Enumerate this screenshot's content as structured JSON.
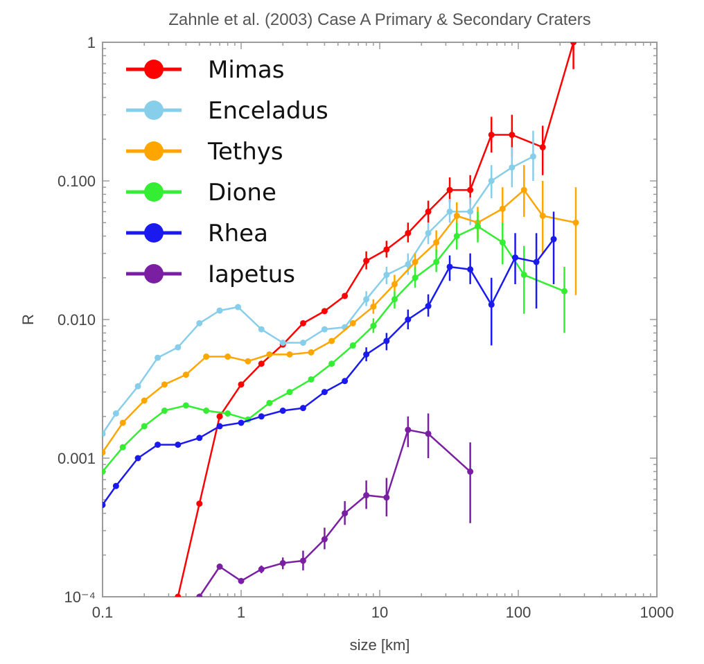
{
  "chart_data": {
    "type": "line",
    "title": "Zahnle et al. (2003) Case A Primary & Secondary Craters",
    "xlabel": "size [km]",
    "ylabel": "R",
    "xscale": "log",
    "yscale": "log",
    "xlim": [
      0.1,
      1000
    ],
    "ylim": [
      0.0001,
      1
    ],
    "x_ticks": [
      {
        "value": 0.1,
        "label": "0.1"
      },
      {
        "value": 1,
        "label": "1"
      },
      {
        "value": 10,
        "label": "10"
      },
      {
        "value": 100,
        "label": "100"
      },
      {
        "value": 1000,
        "label": "1000"
      }
    ],
    "y_ticks": [
      {
        "value": 0.0001,
        "label": "10⁻⁴"
      },
      {
        "value": 0.001,
        "label": "0.001"
      },
      {
        "value": 0.01,
        "label": "0.010"
      },
      {
        "value": 0.1,
        "label": "0.100"
      },
      {
        "value": 1,
        "label": "1"
      }
    ],
    "legend_position": "top-left",
    "grid": false,
    "series": [
      {
        "name": "Mimas",
        "color": "#ff0000",
        "points": [
          {
            "x": 0.35,
            "y": 0.0001
          },
          {
            "x": 0.5,
            "y": 0.00047
          },
          {
            "x": 0.7,
            "y": 0.002
          },
          {
            "x": 1.0,
            "y": 0.0034
          },
          {
            "x": 1.4,
            "y": 0.0048
          },
          {
            "x": 2.0,
            "y": 0.0066
          },
          {
            "x": 2.8,
            "y": 0.0094
          },
          {
            "x": 4.0,
            "y": 0.0115
          },
          {
            "x": 5.6,
            "y": 0.0148
          },
          {
            "x": 8.0,
            "y": 0.0265,
            "lo": 0.023,
            "hi": 0.031
          },
          {
            "x": 11.2,
            "y": 0.032,
            "lo": 0.028,
            "hi": 0.037
          },
          {
            "x": 16.0,
            "y": 0.042,
            "lo": 0.036,
            "hi": 0.05
          },
          {
            "x": 22.4,
            "y": 0.06,
            "lo": 0.05,
            "hi": 0.072
          },
          {
            "x": 32.0,
            "y": 0.086,
            "lo": 0.07,
            "hi": 0.106
          },
          {
            "x": 45.0,
            "y": 0.086,
            "lo": 0.068,
            "hi": 0.11
          },
          {
            "x": 64.0,
            "y": 0.215,
            "lo": 0.16,
            "hi": 0.29
          },
          {
            "x": 90.0,
            "y": 0.215,
            "lo": 0.15,
            "hi": 0.3
          },
          {
            "x": 150.0,
            "y": 0.175,
            "lo": 0.11,
            "hi": 0.25
          },
          {
            "x": 250.0,
            "y": 1.0,
            "lo": 0.64,
            "hi": 1.0
          }
        ]
      },
      {
        "name": "Enceladus",
        "color": "#87ceeb",
        "points": [
          {
            "x": 0.1,
            "y": 0.0015
          },
          {
            "x": 0.125,
            "y": 0.0021
          },
          {
            "x": 0.18,
            "y": 0.0033
          },
          {
            "x": 0.25,
            "y": 0.0053
          },
          {
            "x": 0.35,
            "y": 0.0063
          },
          {
            "x": 0.5,
            "y": 0.0094
          },
          {
            "x": 0.7,
            "y": 0.0116
          },
          {
            "x": 0.95,
            "y": 0.0123
          },
          {
            "x": 1.4,
            "y": 0.0085
          },
          {
            "x": 2.0,
            "y": 0.0068
          },
          {
            "x": 2.8,
            "y": 0.0068
          },
          {
            "x": 4.0,
            "y": 0.0085
          },
          {
            "x": 5.6,
            "y": 0.0088
          },
          {
            "x": 8.0,
            "y": 0.014,
            "lo": 0.0125,
            "hi": 0.016
          },
          {
            "x": 11.2,
            "y": 0.021,
            "lo": 0.018,
            "hi": 0.024
          },
          {
            "x": 16.0,
            "y": 0.025,
            "lo": 0.021,
            "hi": 0.03
          },
          {
            "x": 22.4,
            "y": 0.042,
            "lo": 0.035,
            "hi": 0.05
          },
          {
            "x": 32.0,
            "y": 0.06,
            "lo": 0.05,
            "hi": 0.074
          },
          {
            "x": 45.0,
            "y": 0.06,
            "lo": 0.048,
            "hi": 0.076
          },
          {
            "x": 64.0,
            "y": 0.1,
            "lo": 0.075,
            "hi": 0.13
          },
          {
            "x": 90.0,
            "y": 0.125,
            "lo": 0.09,
            "hi": 0.175
          },
          {
            "x": 128.0,
            "y": 0.15,
            "lo": 0.1,
            "hi": 0.23
          }
        ]
      },
      {
        "name": "Tethys",
        "color": "#ffa500",
        "points": [
          {
            "x": 0.1,
            "y": 0.0011
          },
          {
            "x": 0.14,
            "y": 0.0018
          },
          {
            "x": 0.2,
            "y": 0.0026
          },
          {
            "x": 0.28,
            "y": 0.0034
          },
          {
            "x": 0.4,
            "y": 0.004
          },
          {
            "x": 0.56,
            "y": 0.0054
          },
          {
            "x": 0.8,
            "y": 0.0054
          },
          {
            "x": 1.12,
            "y": 0.005
          },
          {
            "x": 1.6,
            "y": 0.0056
          },
          {
            "x": 2.24,
            "y": 0.0056
          },
          {
            "x": 3.2,
            "y": 0.0058
          },
          {
            "x": 4.5,
            "y": 0.007
          },
          {
            "x": 6.4,
            "y": 0.0094
          },
          {
            "x": 9.0,
            "y": 0.0124,
            "lo": 0.011,
            "hi": 0.014
          },
          {
            "x": 12.8,
            "y": 0.018,
            "lo": 0.016,
            "hi": 0.021
          },
          {
            "x": 18.0,
            "y": 0.026,
            "lo": 0.022,
            "hi": 0.03
          },
          {
            "x": 25.6,
            "y": 0.036,
            "lo": 0.03,
            "hi": 0.044
          },
          {
            "x": 36.0,
            "y": 0.056,
            "lo": 0.045,
            "hi": 0.07
          },
          {
            "x": 51.0,
            "y": 0.05,
            "lo": 0.038,
            "hi": 0.065
          },
          {
            "x": 77.0,
            "y": 0.063,
            "lo": 0.045,
            "hi": 0.09
          },
          {
            "x": 110.0,
            "y": 0.086,
            "lo": 0.055,
            "hi": 0.13
          },
          {
            "x": 150.0,
            "y": 0.056,
            "lo": 0.03,
            "hi": 0.1
          },
          {
            "x": 260.0,
            "y": 0.05,
            "lo": 0.015,
            "hi": 0.09
          }
        ]
      },
      {
        "name": "Dione",
        "color": "#33ee33",
        "points": [
          {
            "x": 0.1,
            "y": 0.0008
          },
          {
            "x": 0.14,
            "y": 0.0012
          },
          {
            "x": 0.2,
            "y": 0.0017
          },
          {
            "x": 0.28,
            "y": 0.0022
          },
          {
            "x": 0.4,
            "y": 0.0024
          },
          {
            "x": 0.56,
            "y": 0.0022
          },
          {
            "x": 0.8,
            "y": 0.0021
          },
          {
            "x": 1.12,
            "y": 0.0019
          },
          {
            "x": 1.6,
            "y": 0.0025
          },
          {
            "x": 2.24,
            "y": 0.003
          },
          {
            "x": 3.2,
            "y": 0.0037
          },
          {
            "x": 4.5,
            "y": 0.0048
          },
          {
            "x": 6.4,
            "y": 0.0065
          },
          {
            "x": 9.0,
            "y": 0.009,
            "lo": 0.008,
            "hi": 0.0102
          },
          {
            "x": 12.8,
            "y": 0.014,
            "lo": 0.012,
            "hi": 0.016
          },
          {
            "x": 18.0,
            "y": 0.02,
            "lo": 0.017,
            "hi": 0.024
          },
          {
            "x": 25.6,
            "y": 0.026,
            "lo": 0.022,
            "hi": 0.032
          },
          {
            "x": 36.0,
            "y": 0.04,
            "lo": 0.032,
            "hi": 0.05
          },
          {
            "x": 51.0,
            "y": 0.047,
            "lo": 0.036,
            "hi": 0.06
          },
          {
            "x": 77.0,
            "y": 0.036,
            "lo": 0.025,
            "hi": 0.05
          },
          {
            "x": 110.0,
            "y": 0.021,
            "lo": 0.011,
            "hi": 0.034
          },
          {
            "x": 215.0,
            "y": 0.016,
            "lo": 0.008,
            "hi": 0.024
          }
        ]
      },
      {
        "name": "Rhea",
        "color": "#1a1aee",
        "points": [
          {
            "x": 0.1,
            "y": 0.00046
          },
          {
            "x": 0.125,
            "y": 0.00063
          },
          {
            "x": 0.18,
            "y": 0.001
          },
          {
            "x": 0.25,
            "y": 0.00125
          },
          {
            "x": 0.35,
            "y": 0.00125
          },
          {
            "x": 0.5,
            "y": 0.0014
          },
          {
            "x": 0.7,
            "y": 0.0017
          },
          {
            "x": 1.0,
            "y": 0.0018
          },
          {
            "x": 1.4,
            "y": 0.002
          },
          {
            "x": 2.0,
            "y": 0.0022
          },
          {
            "x": 2.8,
            "y": 0.0023
          },
          {
            "x": 4.0,
            "y": 0.003
          },
          {
            "x": 5.6,
            "y": 0.0036
          },
          {
            "x": 8.0,
            "y": 0.0056,
            "lo": 0.005,
            "hi": 0.0063
          },
          {
            "x": 11.2,
            "y": 0.007,
            "lo": 0.006,
            "hi": 0.008
          },
          {
            "x": 16.0,
            "y": 0.01,
            "lo": 0.0085,
            "hi": 0.0118
          },
          {
            "x": 22.4,
            "y": 0.0125,
            "lo": 0.0105,
            "hi": 0.0152
          },
          {
            "x": 32.0,
            "y": 0.024,
            "lo": 0.019,
            "hi": 0.029
          },
          {
            "x": 45.0,
            "y": 0.023,
            "lo": 0.018,
            "hi": 0.03
          },
          {
            "x": 64.0,
            "y": 0.0128,
            "lo": 0.0065,
            "hi": 0.02
          },
          {
            "x": 95.0,
            "y": 0.028,
            "lo": 0.018,
            "hi": 0.042
          },
          {
            "x": 135.0,
            "y": 0.026,
            "lo": 0.012,
            "hi": 0.042
          },
          {
            "x": 180.0,
            "y": 0.038,
            "lo": 0.018,
            "hi": 0.06
          }
        ]
      },
      {
        "name": "Iapetus",
        "color": "#7b1fa2",
        "points": [
          {
            "x": 0.5,
            "y": 0.0001
          },
          {
            "x": 0.7,
            "y": 0.000165
          },
          {
            "x": 1.0,
            "y": 0.00013
          },
          {
            "x": 1.4,
            "y": 0.000158,
            "lo": 0.000148,
            "hi": 0.000168
          },
          {
            "x": 2.0,
            "y": 0.000175,
            "lo": 0.000158,
            "hi": 0.000192
          },
          {
            "x": 2.8,
            "y": 0.000182,
            "lo": 0.000155,
            "hi": 0.000215
          },
          {
            "x": 4.0,
            "y": 0.00026,
            "lo": 0.00022,
            "hi": 0.000315
          },
          {
            "x": 5.6,
            "y": 0.0004,
            "lo": 0.00033,
            "hi": 0.00049
          },
          {
            "x": 8.0,
            "y": 0.00054,
            "lo": 0.00043,
            "hi": 0.00069
          },
          {
            "x": 11.2,
            "y": 0.00052,
            "lo": 0.00038,
            "hi": 0.00072
          },
          {
            "x": 16.0,
            "y": 0.0016,
            "lo": 0.0012,
            "hi": 0.002
          },
          {
            "x": 22.4,
            "y": 0.0015,
            "lo": 0.001,
            "hi": 0.0021
          },
          {
            "x": 45.0,
            "y": 0.0008,
            "lo": 0.00034,
            "hi": 0.0013
          }
        ]
      }
    ]
  }
}
